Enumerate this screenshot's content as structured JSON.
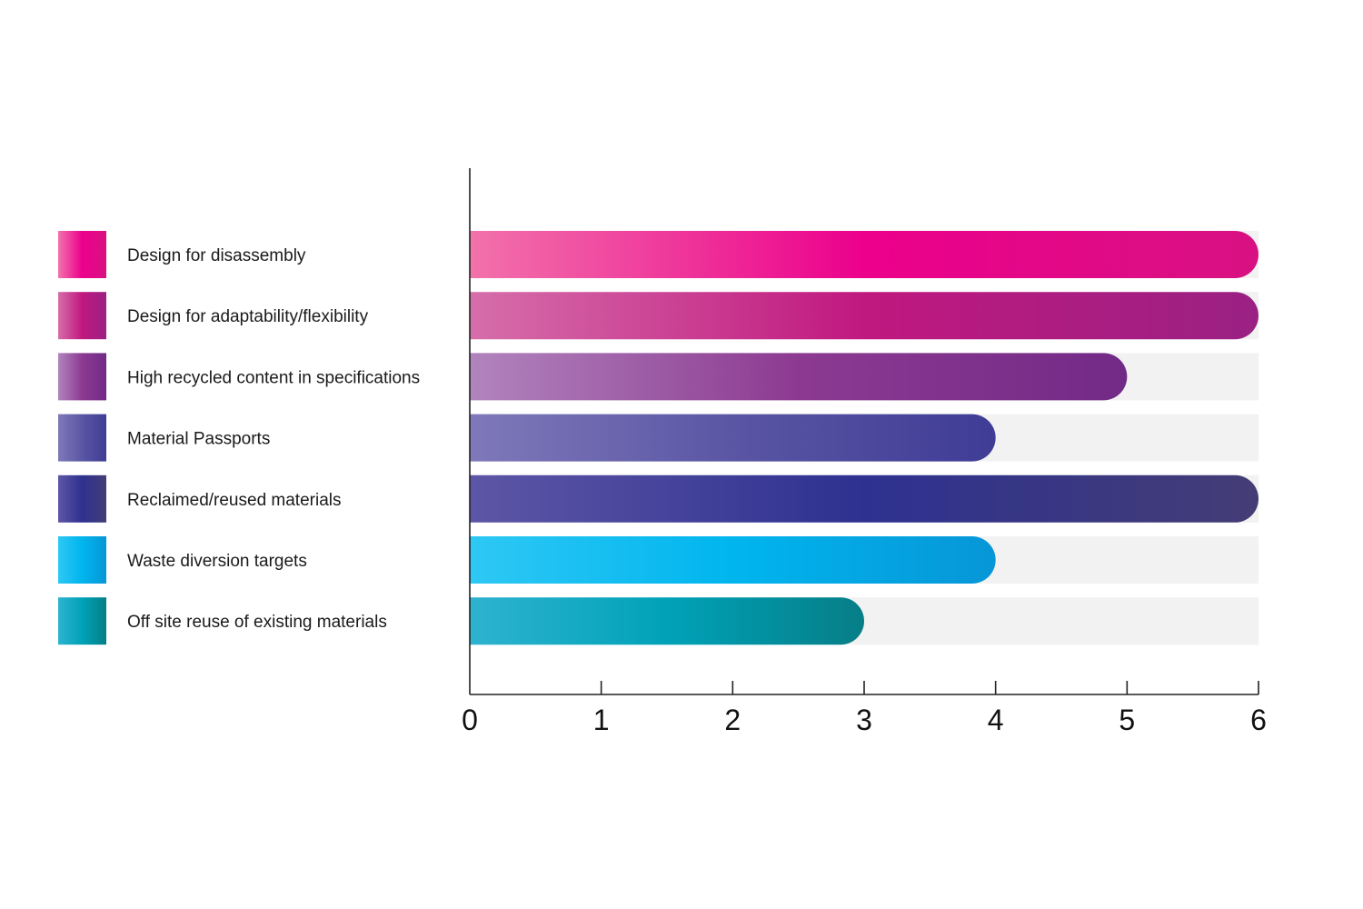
{
  "chart_data": {
    "type": "bar",
    "orientation": "horizontal",
    "title": "",
    "xlabel": "",
    "ylabel": "",
    "xlim": [
      0,
      6
    ],
    "xticks": [
      "0",
      "1",
      "2",
      "3",
      "4",
      "5",
      "6"
    ],
    "grid": false,
    "legend_position": "left",
    "series": [
      {
        "name": "Design for disassembly",
        "value": 6,
        "gradient": [
          "#f272ab",
          "#ec008c",
          "#d81182"
        ]
      },
      {
        "name": "Design for adaptability/flexibility",
        "value": 6,
        "gradient": [
          "#d66eaa",
          "#c0187f",
          "#9a2183"
        ]
      },
      {
        "name": "High recycled content in specifications",
        "value": 5,
        "gradient": [
          "#b184bd",
          "#8c3a91",
          "#722a87"
        ]
      },
      {
        "name": "Material Passports",
        "value": 4,
        "gradient": [
          "#7f79ba",
          "#5a56a4",
          "#3f3c96"
        ]
      },
      {
        "name": "Reclaimed/reused materials",
        "value": 6,
        "gradient": [
          "#5d56a6",
          "#2e3190",
          "#443d75"
        ]
      },
      {
        "name": "Waste diversion targets",
        "value": 4,
        "gradient": [
          "#2ec8f4",
          "#00b5ee",
          "#0796d7"
        ]
      },
      {
        "name": "Off site reuse of existing materials",
        "value": 3,
        "gradient": [
          "#2eb3cf",
          "#00a2b8",
          "#067e87"
        ]
      }
    ],
    "track_color": "#f2f2f2"
  }
}
